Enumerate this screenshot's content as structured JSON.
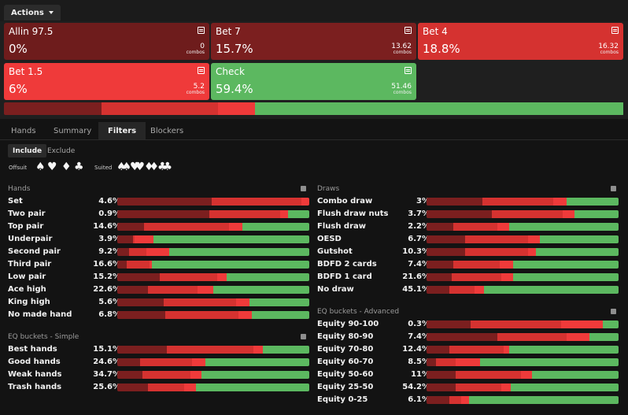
{
  "colors": {
    "allin": "#6e1c1c",
    "bet7": "#7b1f1f",
    "bet4": "#d53230",
    "bet15": "#ef3a3a",
    "check": "#5cb860"
  },
  "toolbar": {
    "actions_label": "Actions"
  },
  "actions": [
    {
      "name": "Allin 97.5",
      "pct": "0%",
      "combos": "0",
      "combos_label": "combos",
      "color": "#6e1c1c"
    },
    {
      "name": "Bet 7",
      "pct": "15.7%",
      "combos": "13.62",
      "combos_label": "combos",
      "color": "#7b1f1f"
    },
    {
      "name": "Bet 4",
      "pct": "18.8%",
      "combos": "16.32",
      "combos_label": "combos",
      "color": "#d53230"
    },
    {
      "name": "Bet 1.5",
      "pct": "6%",
      "combos": "5.2",
      "combos_label": "combos",
      "color": "#ef3a3a"
    },
    {
      "name": "Check",
      "pct": "59.4%",
      "combos": "51.46",
      "combos_label": "combos",
      "color": "#5cb860"
    }
  ],
  "overall_mix": [
    0,
    15.7,
    18.8,
    6,
    59.4
  ],
  "tabs": [
    "Hands",
    "Summary",
    "Filters",
    "Blockers"
  ],
  "active_tab": "Filters",
  "filter_mode": {
    "include": "Include",
    "exclude": "Exclude"
  },
  "suit_filters": {
    "offsuit_label": "Offsuit",
    "offsuit_icons": [
      "♠",
      "♥",
      "♦",
      "♣"
    ],
    "suited_label": "Suited",
    "suited_icons": [
      "♠♠",
      "♥♥",
      "♦♦",
      "♣♣"
    ]
  },
  "hands": {
    "title": "Hands",
    "rows": [
      {
        "label": "Set",
        "pct": "4.6%",
        "mix": [
          0,
          49,
          47,
          4,
          0
        ]
      },
      {
        "label": "Two pair",
        "pct": "0.9%",
        "mix": [
          0,
          48,
          37,
          4,
          11
        ]
      },
      {
        "label": "Top pair",
        "pct": "14.6%",
        "mix": [
          0,
          14,
          44,
          7,
          35
        ]
      },
      {
        "label": "Underpair",
        "pct": "3.9%",
        "mix": [
          0,
          8,
          1,
          10,
          81
        ]
      },
      {
        "label": "Second pair",
        "pct": "9.2%",
        "mix": [
          0,
          6,
          9,
          12,
          73
        ]
      },
      {
        "label": "Third pair",
        "pct": "16.6%",
        "mix": [
          0,
          5,
          12,
          1,
          82
        ]
      },
      {
        "label": "Low pair",
        "pct": "15.2%",
        "mix": [
          0,
          22,
          30,
          5,
          43
        ]
      },
      {
        "label": "Ace high",
        "pct": "22.6%",
        "mix": [
          0,
          16,
          26,
          8,
          50
        ]
      },
      {
        "label": "King high",
        "pct": "5.6%",
        "mix": [
          0,
          24,
          38,
          7,
          31
        ]
      },
      {
        "label": "No made hand",
        "pct": "6.8%",
        "mix": [
          0,
          25,
          38,
          7,
          30
        ]
      }
    ]
  },
  "eq_simple": {
    "title": "EQ buckets - Simple",
    "rows": [
      {
        "label": "Best hands",
        "pct": "15.1%",
        "mix": [
          0,
          26,
          45,
          5,
          24
        ]
      },
      {
        "label": "Good hands",
        "pct": "24.6%",
        "mix": [
          0,
          12,
          27,
          7,
          54
        ]
      },
      {
        "label": "Weak hands",
        "pct": "34.7%",
        "mix": [
          0,
          13,
          25,
          6,
          56
        ]
      },
      {
        "label": "Trash hands",
        "pct": "25.6%",
        "mix": [
          0,
          16,
          19,
          6,
          59
        ]
      }
    ]
  },
  "draws": {
    "title": "Draws",
    "rows": [
      {
        "label": "Combo draw",
        "pct": "3%",
        "mix": [
          0,
          29,
          37,
          7,
          27
        ]
      },
      {
        "label": "Flush draw nuts",
        "pct": "3.7%",
        "mix": [
          0,
          34,
          37,
          6,
          23
        ]
      },
      {
        "label": "Flush draw",
        "pct": "2.2%",
        "mix": [
          0,
          14,
          23,
          6,
          57
        ]
      },
      {
        "label": "OESD",
        "pct": "6.7%",
        "mix": [
          0,
          20,
          33,
          6,
          41
        ]
      },
      {
        "label": "Gutshot",
        "pct": "10.3%",
        "mix": [
          0,
          20,
          33,
          4,
          43
        ]
      },
      {
        "label": "BDFD 2 cards",
        "pct": "7.4%",
        "mix": [
          0,
          14,
          24,
          7,
          55
        ]
      },
      {
        "label": "BDFD 1 card",
        "pct": "21.6%",
        "mix": [
          0,
          13,
          26,
          6,
          55
        ]
      },
      {
        "label": "No draw",
        "pct": "45.1%",
        "mix": [
          0,
          12,
          13,
          5,
          70
        ]
      }
    ]
  },
  "eq_advanced": {
    "title": "EQ buckets - Advanced",
    "rows": [
      {
        "label": "Equity 90-100",
        "pct": "0.3%",
        "mix": [
          0,
          23,
          47,
          22,
          8
        ]
      },
      {
        "label": "Equity 80-90",
        "pct": "7.4%",
        "mix": [
          0,
          37,
          36,
          12,
          15
        ]
      },
      {
        "label": "Equity 70-80",
        "pct": "12.4%",
        "mix": [
          0,
          12,
          28,
          3,
          57
        ]
      },
      {
        "label": "Equity 60-70",
        "pct": "8.5%",
        "mix": [
          0,
          5,
          10,
          13,
          72
        ]
      },
      {
        "label": "Equity 50-60",
        "pct": "11%",
        "mix": [
          0,
          15,
          34,
          6,
          45
        ]
      },
      {
        "label": "Equity 25-50",
        "pct": "54.2%",
        "mix": [
          0,
          15,
          24,
          5,
          56
        ]
      },
      {
        "label": "Equity 0-25",
        "pct": "6.1%",
        "mix": [
          0,
          12,
          6,
          4,
          78
        ]
      }
    ]
  }
}
